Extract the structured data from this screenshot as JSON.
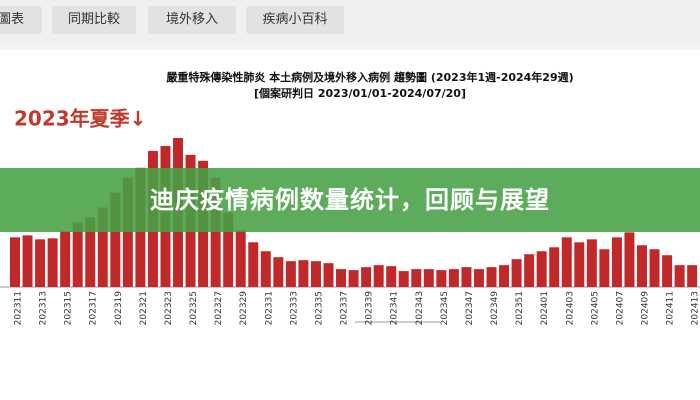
{
  "tabs": [
    "圖表",
    "同期比較",
    "境外移入",
    "疾病小百科"
  ],
  "banner": "迪庆疫情病例数量统计，回顾与展望",
  "chart_data": {
    "type": "bar",
    "title": "嚴重特殊傳染性肺炎 本土病例及境外移入病例 趨勢圖 (2023年1週-2024年29週)",
    "subtitle": "[個案研判日 2023/01/01-2024/07/20]",
    "annotation": "2023年夏季↓",
    "color": "#c0282a",
    "categories": [
      "202311",
      null,
      "202313",
      null,
      "202315",
      null,
      "202317",
      null,
      "202319",
      null,
      "202321",
      null,
      "202323",
      null,
      "202325",
      null,
      "202327",
      null,
      "202329",
      null,
      "202331",
      null,
      "202333",
      null,
      "202335",
      null,
      "202337",
      null,
      "202339",
      null,
      "202341",
      null,
      "202343",
      null,
      "202345",
      null,
      "202347",
      null,
      "202349",
      null,
      "202351",
      null,
      "202401",
      null,
      "202403",
      null,
      "202405",
      null,
      "202407",
      null,
      "202409",
      null,
      "202411",
      null,
      "202413"
    ],
    "values": [
      50,
      52,
      48,
      49,
      56,
      65,
      70,
      80,
      95,
      110,
      120,
      137,
      142,
      150,
      133,
      127,
      110,
      75,
      57,
      45,
      36,
      30,
      26,
      27,
      26,
      24,
      18,
      17,
      20,
      22,
      21,
      16,
      18,
      18,
      17,
      18,
      20,
      18,
      20,
      22,
      28,
      33,
      36,
      40,
      50,
      45,
      48,
      38,
      50,
      55,
      42,
      38,
      32,
      22,
      22
    ],
    "ylim": [
      0,
      150
    ]
  }
}
